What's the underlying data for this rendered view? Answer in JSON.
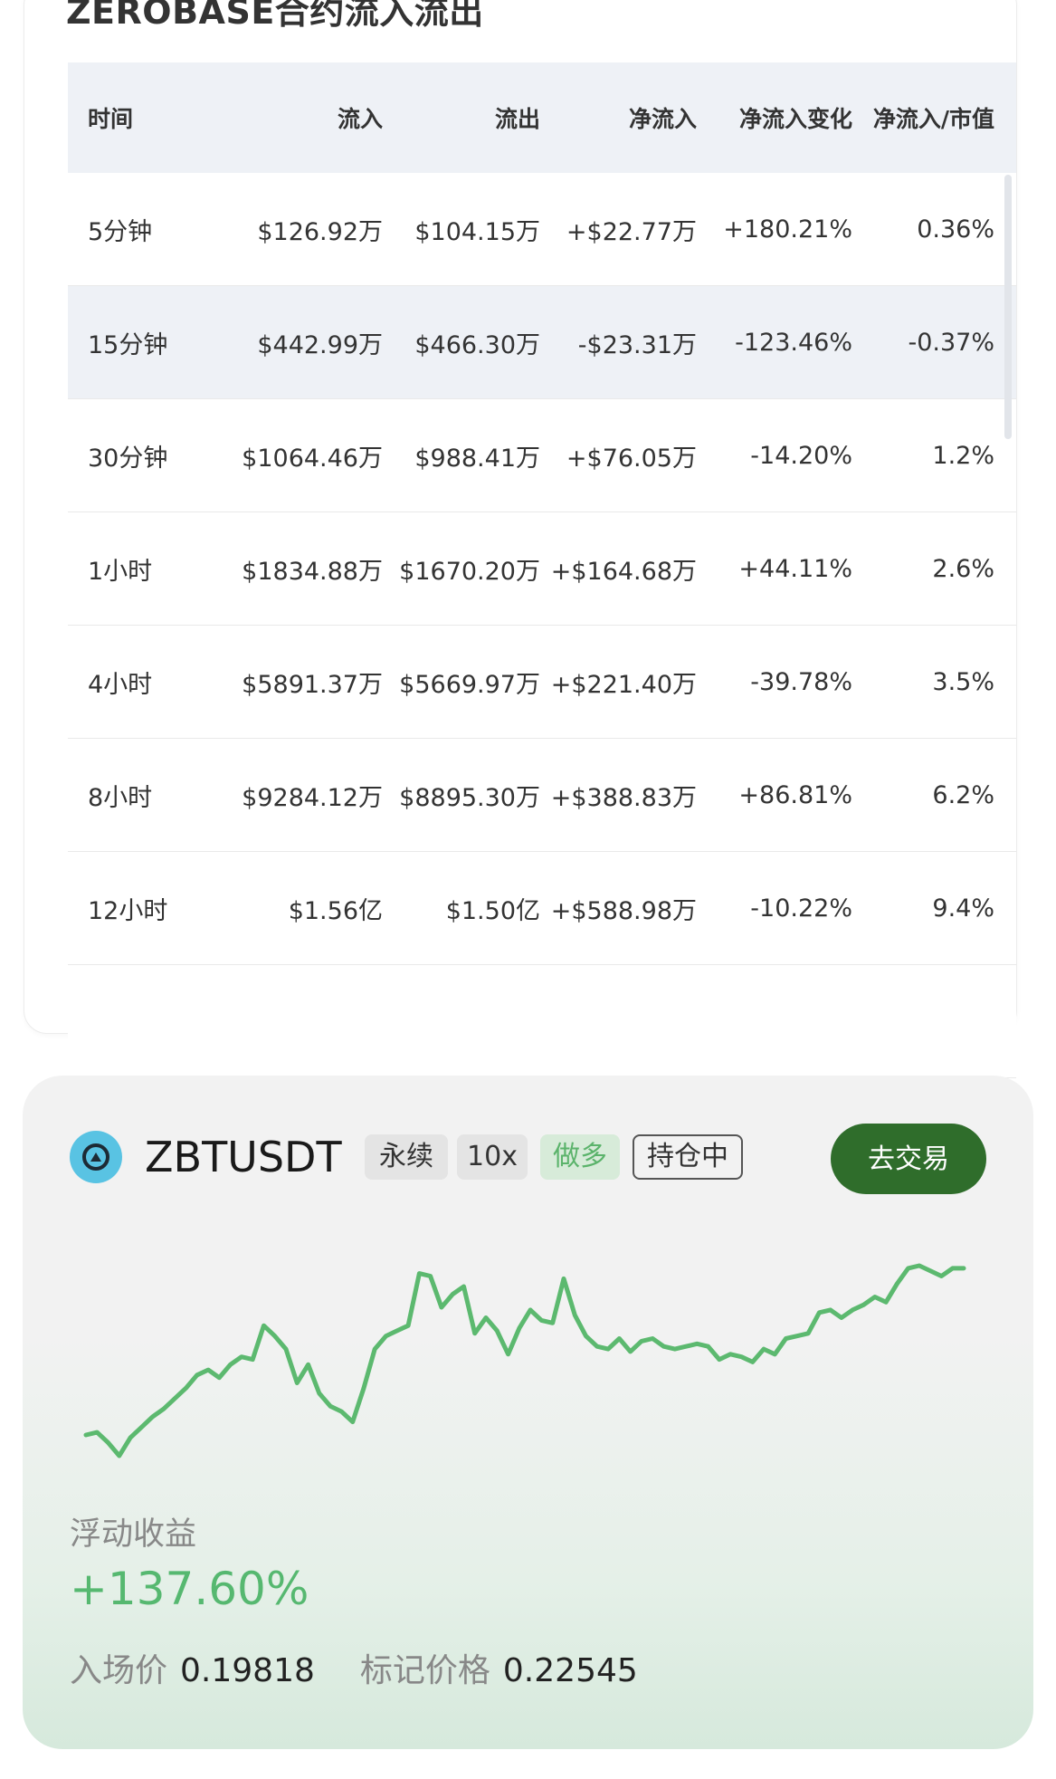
{
  "title": "ZEROBASE合约流入流出",
  "table": {
    "headers": [
      "时间",
      "流入",
      "流出",
      "净流入",
      "净流入变化",
      "净流入/市值"
    ],
    "rows": [
      {
        "cells": [
          "5分钟",
          "$126.92万",
          "$104.15万",
          "+$22.77万",
          "+180.21%",
          "0.36%"
        ],
        "tones": [
          "",
          "",
          "",
          "pos",
          "pos",
          "pos"
        ]
      },
      {
        "cells": [
          "15分钟",
          "$442.99万",
          "$466.30万",
          "-$23.31万",
          "-123.46%",
          "-0.37%"
        ],
        "tones": [
          "",
          "",
          "",
          "neg",
          "neg",
          "neg"
        ]
      },
      {
        "cells": [
          "30分钟",
          "$1064.46万",
          "$988.41万",
          "+$76.05万",
          "-14.20%",
          "1.2%"
        ],
        "tones": [
          "",
          "",
          "",
          "pos",
          "neg",
          "pos"
        ]
      },
      {
        "cells": [
          "1小时",
          "$1834.88万",
          "$1670.20万",
          "+$164.68万",
          "+44.11%",
          "2.6%"
        ],
        "tones": [
          "",
          "",
          "",
          "pos",
          "pos",
          "pos"
        ]
      },
      {
        "cells": [
          "4小时",
          "$5891.37万",
          "$5669.97万",
          "+$221.40万",
          "-39.78%",
          "3.5%"
        ],
        "tones": [
          "",
          "",
          "",
          "pos",
          "neg",
          "pos"
        ]
      },
      {
        "cells": [
          "8小时",
          "$9284.12万",
          "$8895.30万",
          "+$388.83万",
          "+86.81%",
          "6.2%"
        ],
        "tones": [
          "",
          "",
          "",
          "pos",
          "pos",
          "pos"
        ]
      },
      {
        "cells": [
          "12小时",
          "$1.56亿",
          "$1.50亿",
          "+$588.98万",
          "-10.22%",
          "9.4%"
        ],
        "tones": [
          "",
          "",
          "",
          "pos",
          "neg",
          "pos"
        ]
      },
      {
        "cells": [
          "",
          "",
          "",
          "",
          "",
          ""
        ],
        "tones": [
          "",
          "",
          "",
          "",
          "",
          ""
        ]
      }
    ]
  },
  "position": {
    "icon": "zerobase-coin-icon",
    "symbol": "ZBTUSDT",
    "tags": {
      "perpetual": "永续",
      "leverage": "10x",
      "side": "做多",
      "status": "持仓中"
    },
    "trade_button": "去交易",
    "pnl_label": "浮动收益",
    "pnl_value": "+137.60%",
    "entry_label": "入场价",
    "entry_value": "0.19818",
    "mark_label": "标记价格",
    "mark_value": "0.22545",
    "line_color": "#5cb96f"
  },
  "chart_data": {
    "type": "line",
    "title": "",
    "xlabel": "",
    "ylabel": "",
    "grid": false,
    "legend": "none",
    "series": [
      {
        "values": [
          0.132,
          0.133,
          0.129,
          0.124,
          0.131,
          0.135,
          0.139,
          0.142,
          0.146,
          0.15,
          0.155,
          0.157,
          0.154,
          0.159,
          0.162,
          0.161,
          0.174,
          0.17,
          0.165,
          0.152,
          0.159,
          0.148,
          0.143,
          0.141,
          0.137,
          0.15,
          0.165,
          0.17,
          0.172,
          0.174,
          0.194,
          0.193,
          0.181,
          0.186,
          0.189,
          0.171,
          0.177,
          0.172,
          0.163,
          0.173,
          0.18,
          0.176,
          0.175,
          0.192,
          0.178,
          0.17,
          0.166,
          0.165,
          0.169,
          0.164,
          0.168,
          0.169,
          0.166,
          0.165,
          0.166,
          0.167,
          0.166,
          0.161,
          0.163,
          0.162,
          0.16,
          0.165,
          0.163,
          0.169,
          0.17,
          0.171,
          0.179,
          0.18,
          0.177,
          0.18,
          0.182,
          0.185,
          0.183,
          0.19,
          0.196,
          0.197,
          0.195,
          0.193,
          0.196,
          0.196
        ],
        "color": "#5cb96f"
      }
    ]
  }
}
